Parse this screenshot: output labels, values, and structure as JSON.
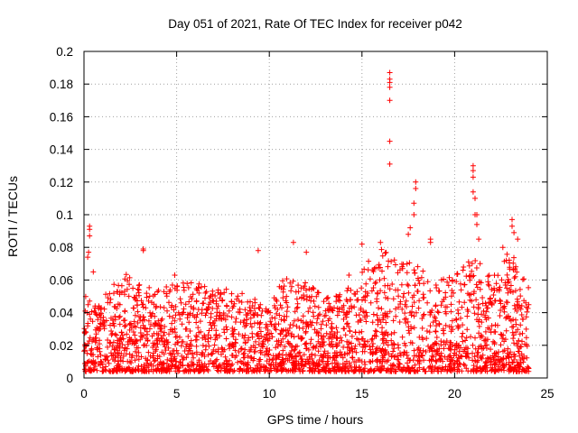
{
  "chart_data": {
    "type": "scatter",
    "title": "Day 051 of 2021, Rate Of TEC Index for receiver p042",
    "xlabel": "GPS time / hours",
    "ylabel": "ROTI / TECUs",
    "xlim": [
      0,
      25
    ],
    "ylim": [
      0,
      0.2
    ],
    "xticks": [
      0,
      5,
      10,
      15,
      20,
      25
    ],
    "xtick_labels": [
      "0",
      "5",
      "10",
      "15",
      "20",
      "25"
    ],
    "yticks": [
      0,
      0.02,
      0.04,
      0.06,
      0.08,
      0.1,
      0.12,
      0.14,
      0.16,
      0.18,
      0.2
    ],
    "ytick_labels": [
      "0",
      "0.02",
      "0.04",
      "0.06",
      "0.08",
      "0.1",
      "0.12",
      "0.14",
      "0.16",
      "0.18",
      "0.2"
    ],
    "grid": true,
    "marker": "+",
    "marker_color": "#ff0000",
    "data_range_hours": [
      0,
      24
    ],
    "bulk_profile": [
      {
        "t": 0,
        "max": 0.05
      },
      {
        "t": 1,
        "max": 0.045
      },
      {
        "t": 2,
        "max": 0.065
      },
      {
        "t": 3,
        "max": 0.055
      },
      {
        "t": 4,
        "max": 0.05
      },
      {
        "t": 5,
        "max": 0.055
      },
      {
        "t": 6,
        "max": 0.055
      },
      {
        "t": 7,
        "max": 0.05
      },
      {
        "t": 8,
        "max": 0.055
      },
      {
        "t": 9,
        "max": 0.045
      },
      {
        "t": 10,
        "max": 0.045
      },
      {
        "t": 11,
        "max": 0.06
      },
      {
        "t": 12,
        "max": 0.055
      },
      {
        "t": 13,
        "max": 0.045
      },
      {
        "t": 14,
        "max": 0.05
      },
      {
        "t": 15,
        "max": 0.065
      },
      {
        "t": 16,
        "max": 0.075
      },
      {
        "t": 17,
        "max": 0.07
      },
      {
        "t": 18,
        "max": 0.065
      },
      {
        "t": 19,
        "max": 0.055
      },
      {
        "t": 20,
        "max": 0.06
      },
      {
        "t": 21,
        "max": 0.07
      },
      {
        "t": 22,
        "max": 0.06
      },
      {
        "t": 23,
        "max": 0.075
      },
      {
        "t": 24,
        "max": 0.055
      }
    ],
    "notable_points": [
      {
        "x": 0.3,
        "y": 0.093
      },
      {
        "x": 0.3,
        "y": 0.091
      },
      {
        "x": 0.3,
        "y": 0.087
      },
      {
        "x": 0.25,
        "y": 0.077
      },
      {
        "x": 0.2,
        "y": 0.074
      },
      {
        "x": 0.5,
        "y": 0.065
      },
      {
        "x": 3.2,
        "y": 0.079
      },
      {
        "x": 3.2,
        "y": 0.078
      },
      {
        "x": 4.9,
        "y": 0.063
      },
      {
        "x": 9.4,
        "y": 0.078
      },
      {
        "x": 11.3,
        "y": 0.083
      },
      {
        "x": 12.0,
        "y": 0.077
      },
      {
        "x": 16.5,
        "y": 0.187
      },
      {
        "x": 16.5,
        "y": 0.183
      },
      {
        "x": 16.5,
        "y": 0.181
      },
      {
        "x": 16.5,
        "y": 0.178
      },
      {
        "x": 16.5,
        "y": 0.17
      },
      {
        "x": 16.5,
        "y": 0.145
      },
      {
        "x": 16.5,
        "y": 0.131
      },
      {
        "x": 17.9,
        "y": 0.12
      },
      {
        "x": 17.9,
        "y": 0.116
      },
      {
        "x": 17.8,
        "y": 0.107
      },
      {
        "x": 17.8,
        "y": 0.1
      },
      {
        "x": 17.6,
        "y": 0.092
      },
      {
        "x": 17.5,
        "y": 0.088
      },
      {
        "x": 18.7,
        "y": 0.085
      },
      {
        "x": 18.7,
        "y": 0.083
      },
      {
        "x": 21.0,
        "y": 0.13
      },
      {
        "x": 21.0,
        "y": 0.127
      },
      {
        "x": 21.0,
        "y": 0.123
      },
      {
        "x": 21.0,
        "y": 0.114
      },
      {
        "x": 21.1,
        "y": 0.11
      },
      {
        "x": 21.1,
        "y": 0.1
      },
      {
        "x": 21.2,
        "y": 0.1
      },
      {
        "x": 21.2,
        "y": 0.094
      },
      {
        "x": 21.3,
        "y": 0.085
      },
      {
        "x": 23.1,
        "y": 0.097
      },
      {
        "x": 23.1,
        "y": 0.093
      },
      {
        "x": 23.2,
        "y": 0.089
      },
      {
        "x": 23.4,
        "y": 0.085
      },
      {
        "x": 15.0,
        "y": 0.082
      },
      {
        "x": 16.0,
        "y": 0.083
      },
      {
        "x": 14.3,
        "y": 0.063
      },
      {
        "x": 22.6,
        "y": 0.08
      }
    ]
  }
}
